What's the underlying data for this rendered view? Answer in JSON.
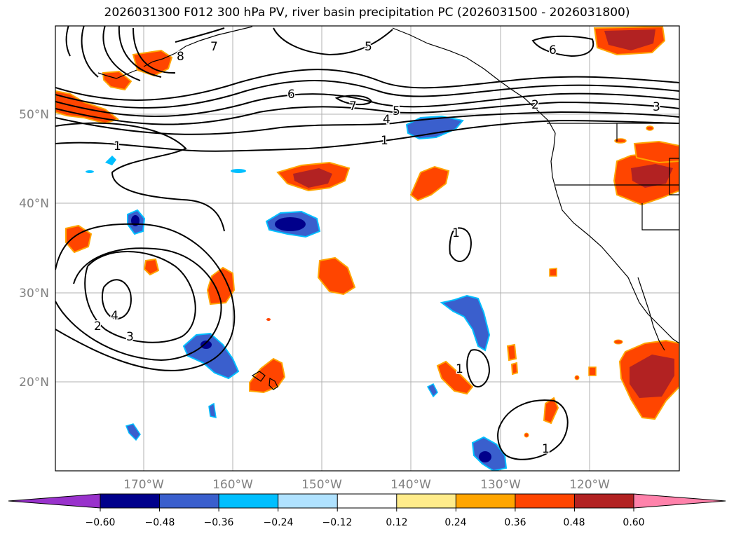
{
  "title": "2026031300 F012 300 hPa PV, river basin precipitation PC (2026031500 - 2026031800)",
  "map": {
    "lat_labels": [
      "50°N",
      "40°N",
      "30°N",
      "20°N"
    ],
    "lon_labels": [
      "170°W",
      "160°W",
      "150°W",
      "140°W",
      "130°W",
      "120°W"
    ],
    "gridline_color": "#b0b0b0",
    "label_color": "#808080"
  },
  "pv_contour_labels": [
    "6",
    "5",
    "7",
    "7",
    "4",
    "5",
    "6",
    "1",
    "2",
    "3",
    "1",
    "4",
    "3",
    "2",
    "1",
    "1",
    "1",
    "8"
  ],
  "colorbar": {
    "tick_labels": [
      "−0.60",
      "−0.48",
      "−0.36",
      "−0.24",
      "−0.12",
      "0.12",
      "0.24",
      "0.36",
      "0.48",
      "0.60"
    ],
    "colors": [
      "#9932cc",
      "#00008b",
      "#3a5fcd",
      "#00bfff",
      "#b0e2ff",
      "#ffffff",
      "#ffec8b",
      "#ffa500",
      "#ff4500",
      "#b22222",
      "#ff82ab"
    ]
  }
}
